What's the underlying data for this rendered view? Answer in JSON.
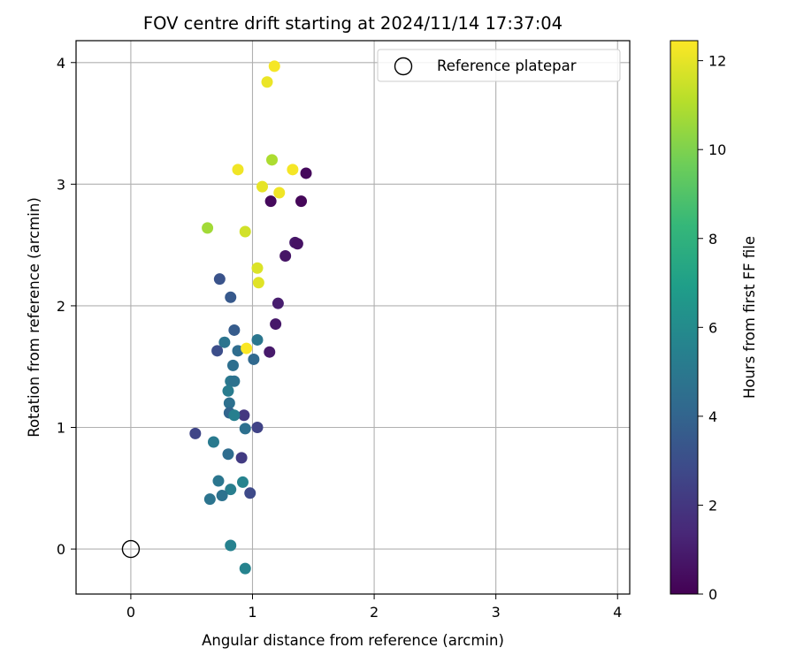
{
  "chart_data": {
    "type": "scatter",
    "title": "FOV centre drift starting at 2024/11/14 17:37:04",
    "xlabel": "Angular distance from reference (arcmin)",
    "ylabel": "Rotation from reference (arcmin)",
    "xlim": [
      -0.45,
      4.1
    ],
    "ylim": [
      -0.37,
      4.18
    ],
    "xticks": [
      0,
      1,
      2,
      3,
      4
    ],
    "yticks": [
      0,
      1,
      2,
      3,
      4
    ],
    "grid": true,
    "legend": {
      "placement": "top-right",
      "entries": [
        "Reference platepar"
      ]
    },
    "reference_point": {
      "x": 0,
      "y": 0,
      "label": "Reference platepar"
    },
    "colorbar": {
      "label": "Hours from first FF file",
      "colormap": "viridis",
      "range": [
        0,
        12.45
      ],
      "ticks": [
        0,
        2,
        4,
        6,
        8,
        10,
        12
      ]
    },
    "points": [
      {
        "x": 1.44,
        "y": 3.09,
        "c": 0.3
      },
      {
        "x": 1.4,
        "y": 2.86,
        "c": 0.2
      },
      {
        "x": 1.15,
        "y": 2.86,
        "c": 0.3
      },
      {
        "x": 1.35,
        "y": 2.52,
        "c": 0.8
      },
      {
        "x": 1.37,
        "y": 2.51,
        "c": 0.6
      },
      {
        "x": 1.27,
        "y": 2.41,
        "c": 0.7
      },
      {
        "x": 1.21,
        "y": 2.02,
        "c": 1.0
      },
      {
        "x": 1.19,
        "y": 1.85,
        "c": 0.8
      },
      {
        "x": 1.14,
        "y": 1.62,
        "c": 0.9
      },
      {
        "x": 1.04,
        "y": 1.0,
        "c": 2.5
      },
      {
        "x": 0.93,
        "y": 1.1,
        "c": 2.0
      },
      {
        "x": 0.91,
        "y": 0.75,
        "c": 2.2
      },
      {
        "x": 0.53,
        "y": 0.95,
        "c": 2.6
      },
      {
        "x": 0.98,
        "y": 0.46,
        "c": 2.8
      },
      {
        "x": 0.73,
        "y": 2.22,
        "c": 3.2
      },
      {
        "x": 0.82,
        "y": 2.07,
        "c": 3.5
      },
      {
        "x": 0.85,
        "y": 1.8,
        "c": 3.6
      },
      {
        "x": 0.71,
        "y": 1.63,
        "c": 3.0
      },
      {
        "x": 0.77,
        "y": 1.7,
        "c": 4.8
      },
      {
        "x": 0.88,
        "y": 1.63,
        "c": 4.4
      },
      {
        "x": 1.01,
        "y": 1.56,
        "c": 4.2
      },
      {
        "x": 1.04,
        "y": 1.72,
        "c": 4.9
      },
      {
        "x": 0.84,
        "y": 1.51,
        "c": 4.5
      },
      {
        "x": 0.82,
        "y": 1.38,
        "c": 5.0
      },
      {
        "x": 0.85,
        "y": 1.38,
        "c": 4.7
      },
      {
        "x": 0.8,
        "y": 1.3,
        "c": 5.2
      },
      {
        "x": 0.81,
        "y": 1.2,
        "c": 4.6
      },
      {
        "x": 0.81,
        "y": 1.12,
        "c": 4.0
      },
      {
        "x": 0.85,
        "y": 1.1,
        "c": 5.4
      },
      {
        "x": 0.94,
        "y": 0.99,
        "c": 4.6
      },
      {
        "x": 0.68,
        "y": 0.88,
        "c": 5.1
      },
      {
        "x": 0.8,
        "y": 0.78,
        "c": 4.4
      },
      {
        "x": 0.72,
        "y": 0.56,
        "c": 4.9
      },
      {
        "x": 0.92,
        "y": 0.55,
        "c": 5.6
      },
      {
        "x": 0.82,
        "y": 0.49,
        "c": 5.3
      },
      {
        "x": 0.75,
        "y": 0.44,
        "c": 4.7
      },
      {
        "x": 0.65,
        "y": 0.41,
        "c": 4.8
      },
      {
        "x": 0.82,
        "y": 0.03,
        "c": 5.5
      },
      {
        "x": 0.94,
        "y": -0.16,
        "c": 5.6
      },
      {
        "x": 1.18,
        "y": 3.97,
        "c": 12.3
      },
      {
        "x": 1.12,
        "y": 3.84,
        "c": 12.1
      },
      {
        "x": 1.16,
        "y": 3.2,
        "c": 10.9
      },
      {
        "x": 0.88,
        "y": 3.12,
        "c": 12.2
      },
      {
        "x": 1.33,
        "y": 3.12,
        "c": 12.3
      },
      {
        "x": 1.08,
        "y": 2.98,
        "c": 12.0
      },
      {
        "x": 1.22,
        "y": 2.93,
        "c": 12.2
      },
      {
        "x": 0.63,
        "y": 2.64,
        "c": 10.7
      },
      {
        "x": 0.94,
        "y": 2.61,
        "c": 11.6
      },
      {
        "x": 1.04,
        "y": 2.31,
        "c": 11.8
      },
      {
        "x": 1.05,
        "y": 2.19,
        "c": 11.9
      },
      {
        "x": 0.95,
        "y": 1.65,
        "c": 12.4
      }
    ]
  }
}
